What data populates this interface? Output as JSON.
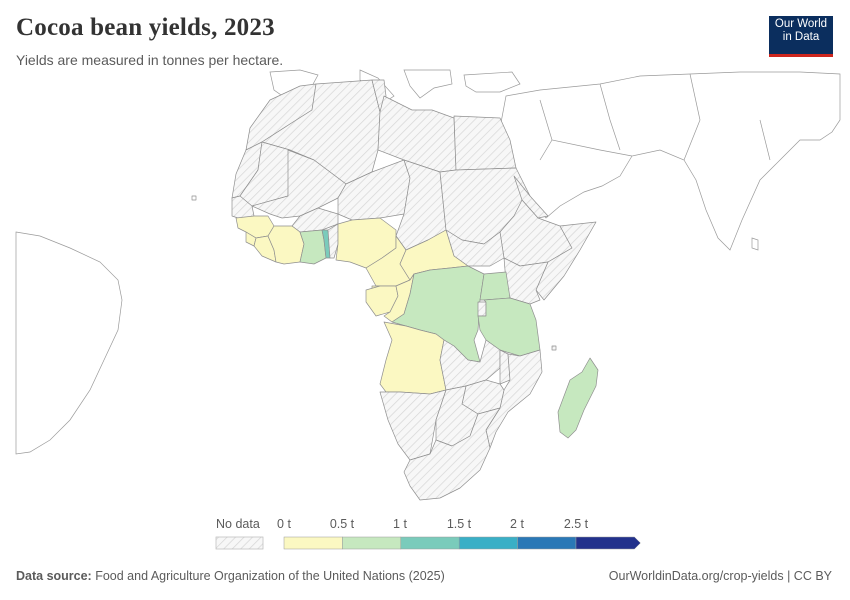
{
  "header": {
    "title": "Cocoa bean yields, 2023",
    "subtitle": "Yields are measured in tonnes per hectare."
  },
  "logo": {
    "line1": "Our World",
    "line2": "in Data",
    "bg": "#0b2e5e",
    "accent": "#ce261e"
  },
  "legend": {
    "no_data_label": "No data",
    "ticks": [
      "0 t",
      "0.5 t",
      "1 t",
      "1.5 t",
      "2 t",
      "2.5 t"
    ],
    "colors": [
      "#fbf8c2",
      "#c6e8bf",
      "#7acbbb",
      "#3aafc6",
      "#2a78b6",
      "#22318c"
    ]
  },
  "map": {
    "countries": [
      {
        "name": "Côte d'Ivoire",
        "color": "#fbf8c2"
      },
      {
        "name": "Ghana",
        "color": "#c6e8bf"
      },
      {
        "name": "Togo",
        "color": "#7acbbb"
      },
      {
        "name": "Nigeria",
        "color": "#fbf8c2"
      },
      {
        "name": "Cameroon",
        "color": "#fbf8c2"
      },
      {
        "name": "Central African Republic",
        "color": "#fbf8c2"
      },
      {
        "name": "Liberia",
        "color": "#fbf8c2"
      },
      {
        "name": "Sierra Leone",
        "color": "#fbf8c2"
      },
      {
        "name": "Guinea",
        "color": "#fbf8c2"
      },
      {
        "name": "Gabon",
        "color": "#fbf8c2"
      },
      {
        "name": "Congo",
        "color": "#fbf8c2"
      },
      {
        "name": "Equatorial Guinea",
        "color": "#fbf8c2"
      },
      {
        "name": "Angola",
        "color": "#fbf8c2"
      },
      {
        "name": "DR Congo",
        "color": "#c6e8bf"
      },
      {
        "name": "Uganda",
        "color": "#c6e8bf"
      },
      {
        "name": "Tanzania",
        "color": "#c6e8bf"
      },
      {
        "name": "Madagascar",
        "color": "#c6e8bf"
      }
    ]
  },
  "footer": {
    "source_label": "Data source:",
    "source_text": "Food and Agriculture Organization of the United Nations (2025)",
    "url_text": "OurWorldinData.org/crop-yields | CC BY"
  }
}
